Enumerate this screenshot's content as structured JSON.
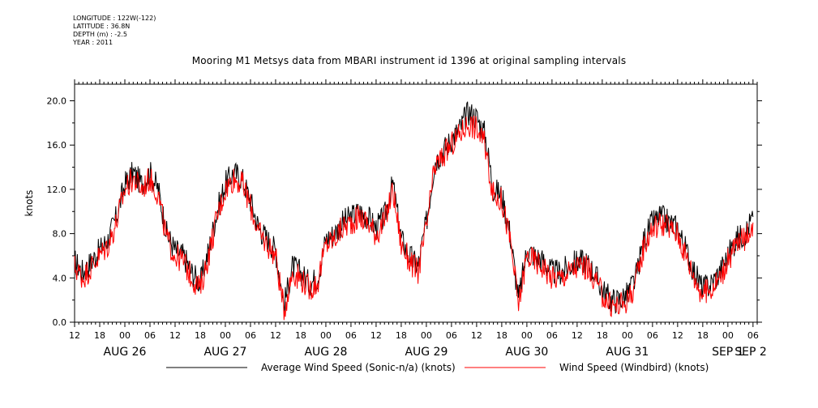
{
  "meta": {
    "longitude": "LONGITUDE : 122W(-122)",
    "latitude": "LATITUDE : 36.8N",
    "depth": "DEPTH (m) : -2.5",
    "year": "YEAR : 2011"
  },
  "chart_data": {
    "type": "line",
    "title": "Mooring M1 Metsys data from MBARI instrument id 1396 at original sampling intervals",
    "ylabel": "knots",
    "xlabel": "",
    "ylim": [
      0,
      21.5
    ],
    "yticks": [
      0.0,
      4.0,
      8.0,
      12.0,
      16.0,
      20.0
    ],
    "ytick_labels": [
      "0.0",
      "4.0",
      "8.0",
      "12.0",
      "16.0",
      "20.0"
    ],
    "x_unit": "hours since AUG 26 00:00",
    "xlim": [
      -12,
      151
    ],
    "xticks": [
      -12,
      -6,
      0,
      6,
      12,
      18,
      24,
      30,
      36,
      42,
      48,
      54,
      60,
      66,
      72,
      78,
      84,
      90,
      96,
      102,
      108,
      114,
      120,
      126,
      132,
      138,
      144,
      150
    ],
    "xtick_labels": [
      "12",
      "18",
      "00",
      "06",
      "12",
      "18",
      "00",
      "06",
      "12",
      "18",
      "00",
      "06",
      "12",
      "18",
      "00",
      "06",
      "12",
      "18",
      "00",
      "06",
      "12",
      "18",
      "00",
      "06",
      "12",
      "18",
      "00",
      "06"
    ],
    "day_labels": [
      {
        "x": 0,
        "label": "AUG 26"
      },
      {
        "x": 24,
        "label": "AUG 27"
      },
      {
        "x": 48,
        "label": "AUG 28"
      },
      {
        "x": 72,
        "label": "AUG 29"
      },
      {
        "x": 96,
        "label": "AUG 30"
      },
      {
        "x": 120,
        "label": "AUG 31"
      },
      {
        "x": 144,
        "label": "SEP  1"
      },
      {
        "x": 168,
        "label": "SEP  2"
      }
    ],
    "series": [
      {
        "name": "Average Wind Speed (Sonic-n/a) (knots)",
        "color": "#000000",
        "x": [
          -12,
          -10,
          -8,
          -6,
          -4,
          -2,
          0,
          2,
          4,
          6,
          8,
          10,
          12,
          14,
          16,
          18,
          20,
          22,
          24,
          26,
          28,
          30,
          32,
          34,
          36,
          38,
          40,
          42,
          44,
          46,
          48,
          50,
          52,
          54,
          56,
          58,
          60,
          62,
          64,
          66,
          68,
          70,
          72,
          74,
          76,
          78,
          80,
          82,
          84,
          86,
          88,
          90,
          92,
          94,
          96,
          98,
          100,
          102,
          104,
          106,
          108,
          110,
          112,
          114,
          116,
          118,
          120,
          122,
          124,
          126,
          128,
          130,
          132,
          134,
          136,
          138,
          140,
          142,
          144,
          146,
          148,
          150
        ],
        "y": [
          5.5,
          4.5,
          5.5,
          6.5,
          7.5,
          9.5,
          12.5,
          13.5,
          12.5,
          13.5,
          12.0,
          8.0,
          6.5,
          6.0,
          4.5,
          3.5,
          6.5,
          10.0,
          12.5,
          13.5,
          13.0,
          11.0,
          8.5,
          7.5,
          6.5,
          1.5,
          5.0,
          4.5,
          3.5,
          4.0,
          7.5,
          8.0,
          9.0,
          9.5,
          10.0,
          9.5,
          8.5,
          9.5,
          12.5,
          7.5,
          6.0,
          5.0,
          9.0,
          14.5,
          15.5,
          16.5,
          17.5,
          19.0,
          18.5,
          17.0,
          12.0,
          11.5,
          8.0,
          2.0,
          6.5,
          6.0,
          5.5,
          4.5,
          4.5,
          5.0,
          5.5,
          5.5,
          4.5,
          3.0,
          2.0,
          2.0,
          2.5,
          4.0,
          7.5,
          9.0,
          9.5,
          9.0,
          8.5,
          6.5,
          4.5,
          3.0,
          3.5,
          4.5,
          6.0,
          7.5,
          8.0,
          9.5
        ]
      },
      {
        "name": "Wind Speed (Windbird) (knots)",
        "color": "#ff0000",
        "x": [
          -12,
          -10,
          -8,
          -6,
          -4,
          -2,
          0,
          2,
          4,
          6,
          8,
          10,
          12,
          14,
          16,
          18,
          20,
          22,
          24,
          26,
          28,
          30,
          32,
          34,
          36,
          38,
          40,
          42,
          44,
          46,
          48,
          50,
          52,
          54,
          56,
          58,
          60,
          62,
          64,
          66,
          68,
          70,
          72,
          74,
          76,
          78,
          80,
          82,
          84,
          86,
          88,
          90,
          92,
          94,
          96,
          98,
          100,
          102,
          104,
          106,
          108,
          110,
          112,
          114,
          116,
          118,
          120,
          122,
          124,
          126,
          128,
          130,
          132,
          134,
          136,
          138,
          140,
          142,
          144,
          146,
          148,
          150
        ],
        "y": [
          5.0,
          4.0,
          5.0,
          6.0,
          7.0,
          9.0,
          12.0,
          13.0,
          12.0,
          13.0,
          11.5,
          7.5,
          6.0,
          5.5,
          4.0,
          3.0,
          6.0,
          9.5,
          12.0,
          13.0,
          12.5,
          10.5,
          8.0,
          7.0,
          6.0,
          1.0,
          4.5,
          4.0,
          3.0,
          3.5,
          7.0,
          7.5,
          8.5,
          9.0,
          9.5,
          9.0,
          8.0,
          9.0,
          12.0,
          7.0,
          5.5,
          4.5,
          8.5,
          14.0,
          15.0,
          16.0,
          17.0,
          18.0,
          17.5,
          16.0,
          11.5,
          11.0,
          7.5,
          1.5,
          6.0,
          5.5,
          5.0,
          4.0,
          4.0,
          4.5,
          5.0,
          5.0,
          4.0,
          2.5,
          1.5,
          1.5,
          2.0,
          3.5,
          7.0,
          8.5,
          9.0,
          8.5,
          8.0,
          6.0,
          4.0,
          2.5,
          3.0,
          4.0,
          5.5,
          7.0,
          7.5,
          9.0
        ]
      }
    ],
    "legend_placement": "bottom"
  }
}
